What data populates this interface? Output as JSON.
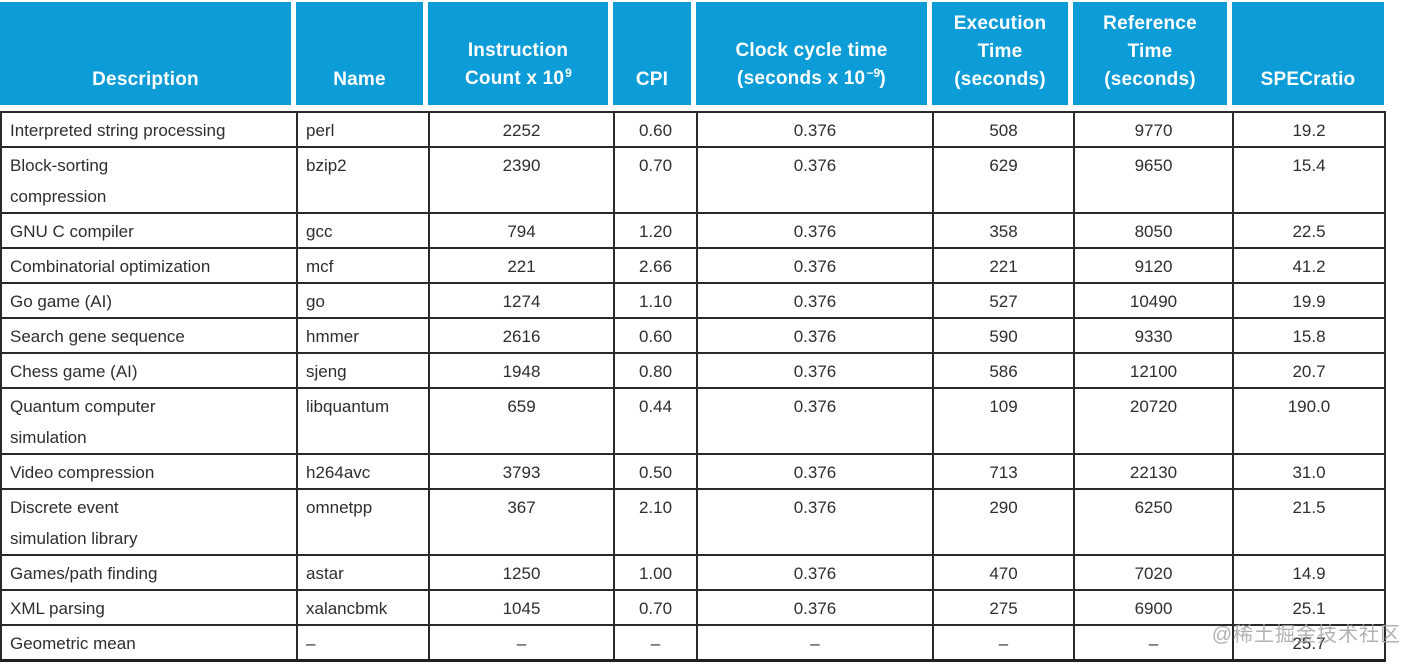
{
  "table": {
    "header": {
      "description": "Description",
      "name": "Name",
      "instruction_line1": "Instruction",
      "instruction_line2": "Count x 10",
      "instruction_sup": "9",
      "cpi": "CPI",
      "clock_line1": "Clock cycle time",
      "clock_line2_pre": "(seconds x 10",
      "clock_sup": "−9",
      "clock_line2_post": ")",
      "execution_line1": "Execution",
      "execution_line2": "Time",
      "execution_line3": "(seconds)",
      "reference_line1": "Reference",
      "reference_line2": "Time",
      "reference_line3": "(seconds)",
      "specratio": "SPECratio"
    },
    "rows": [
      {
        "description": [
          "Interpreted string processing"
        ],
        "name": "perl",
        "instruction_count": "2252",
        "cpi": "0.60",
        "clock_cycle_time": "0.376",
        "execution_time": "508",
        "reference_time": "9770",
        "specratio": "19.2",
        "tall": false
      },
      {
        "description": [
          "Block-sorting",
          "compression"
        ],
        "name": "bzip2",
        "instruction_count": "2390",
        "cpi": "0.70",
        "clock_cycle_time": "0.376",
        "execution_time": "629",
        "reference_time": "9650",
        "specratio": "15.4",
        "tall": true
      },
      {
        "description": [
          "GNU C compiler"
        ],
        "name": "gcc",
        "instruction_count": "794",
        "cpi": "1.20",
        "clock_cycle_time": "0.376",
        "execution_time": "358",
        "reference_time": "8050",
        "specratio": "22.5",
        "tall": false
      },
      {
        "description": [
          "Combinatorial optimization"
        ],
        "name": "mcf",
        "instruction_count": "221",
        "cpi": "2.66",
        "clock_cycle_time": "0.376",
        "execution_time": "221",
        "reference_time": "9120",
        "specratio": "41.2",
        "tall": false
      },
      {
        "description": [
          "Go game (AI)"
        ],
        "name": "go",
        "instruction_count": "1274",
        "cpi": "1.10",
        "clock_cycle_time": "0.376",
        "execution_time": "527",
        "reference_time": "10490",
        "specratio": "19.9",
        "tall": false
      },
      {
        "description": [
          "Search gene sequence"
        ],
        "name": "hmmer",
        "instruction_count": "2616",
        "cpi": "0.60",
        "clock_cycle_time": "0.376",
        "execution_time": "590",
        "reference_time": "9330",
        "specratio": "15.8",
        "tall": false
      },
      {
        "description": [
          "Chess game (AI)"
        ],
        "name": "sjeng",
        "instruction_count": "1948",
        "cpi": "0.80",
        "clock_cycle_time": "0.376",
        "execution_time": "586",
        "reference_time": "12100",
        "specratio": "20.7",
        "tall": false
      },
      {
        "description": [
          "Quantum computer",
          "simulation"
        ],
        "name": "libquantum",
        "instruction_count": "659",
        "cpi": "0.44",
        "clock_cycle_time": "0.376",
        "execution_time": "109",
        "reference_time": "20720",
        "specratio": "190.0",
        "tall": true
      },
      {
        "description": [
          "Video compression"
        ],
        "name": "h264avc",
        "instruction_count": "3793",
        "cpi": "0.50",
        "clock_cycle_time": "0.376",
        "execution_time": "713",
        "reference_time": "22130",
        "specratio": "31.0",
        "tall": false
      },
      {
        "description": [
          "Discrete event",
          "simulation library"
        ],
        "name": "omnetpp",
        "instruction_count": "367",
        "cpi": "2.10",
        "clock_cycle_time": "0.376",
        "execution_time": "290",
        "reference_time": "6250",
        "specratio": "21.5",
        "tall": true
      },
      {
        "description": [
          "Games/path finding"
        ],
        "name": "astar",
        "instruction_count": "1250",
        "cpi": "1.00",
        "clock_cycle_time": "0.376",
        "execution_time": "470",
        "reference_time": "7020",
        "specratio": "14.9",
        "tall": false
      },
      {
        "description": [
          "XML parsing"
        ],
        "name": "xalancbmk",
        "instruction_count": "1045",
        "cpi": "0.70",
        "clock_cycle_time": "0.376",
        "execution_time": "275",
        "reference_time": "6900",
        "specratio": "25.1",
        "tall": false
      },
      {
        "description": [
          "Geometric mean"
        ],
        "name": "–",
        "instruction_count": "–",
        "cpi": "–",
        "clock_cycle_time": "–",
        "execution_time": "–",
        "reference_time": "–",
        "specratio": "25.7",
        "tall": false
      }
    ]
  },
  "chart_data": {
    "type": "table",
    "columns": [
      "Description",
      "Name",
      "Instruction Count x 10^9",
      "CPI",
      "Clock cycle time (seconds x 10^-9)",
      "Execution Time (seconds)",
      "Reference Time (seconds)",
      "SPECratio"
    ],
    "rows": [
      [
        "Interpreted string processing",
        "perl",
        2252,
        0.6,
        0.376,
        508,
        9770,
        19.2
      ],
      [
        "Block-sorting compression",
        "bzip2",
        2390,
        0.7,
        0.376,
        629,
        9650,
        15.4
      ],
      [
        "GNU C compiler",
        "gcc",
        794,
        1.2,
        0.376,
        358,
        8050,
        22.5
      ],
      [
        "Combinatorial optimization",
        "mcf",
        221,
        2.66,
        0.376,
        221,
        9120,
        41.2
      ],
      [
        "Go game (AI)",
        "go",
        1274,
        1.1,
        0.376,
        527,
        10490,
        19.9
      ],
      [
        "Search gene sequence",
        "hmmer",
        2616,
        0.6,
        0.376,
        590,
        9330,
        15.8
      ],
      [
        "Chess game (AI)",
        "sjeng",
        1948,
        0.8,
        0.376,
        586,
        12100,
        20.7
      ],
      [
        "Quantum computer simulation",
        "libquantum",
        659,
        0.44,
        0.376,
        109,
        20720,
        190.0
      ],
      [
        "Video compression",
        "h264avc",
        3793,
        0.5,
        0.376,
        713,
        22130,
        31.0
      ],
      [
        "Discrete event simulation library",
        "omnetpp",
        367,
        2.1,
        0.376,
        290,
        6250,
        21.5
      ],
      [
        "Games/path finding",
        "astar",
        1250,
        1.0,
        0.376,
        470,
        7020,
        14.9
      ],
      [
        "XML parsing",
        "xalancbmk",
        1045,
        0.7,
        0.376,
        275,
        6900,
        25.1
      ],
      [
        "Geometric mean",
        "-",
        "-",
        "-",
        "-",
        "-",
        "-",
        25.7
      ]
    ]
  },
  "watermark": "@稀土掘金技术社区",
  "colors": {
    "header_bg": "#0c9cd8",
    "header_text": "#ffffff",
    "body_text": "#2e2e2e",
    "border": "#2a2a2a",
    "watermark": "#a5a5a5"
  }
}
